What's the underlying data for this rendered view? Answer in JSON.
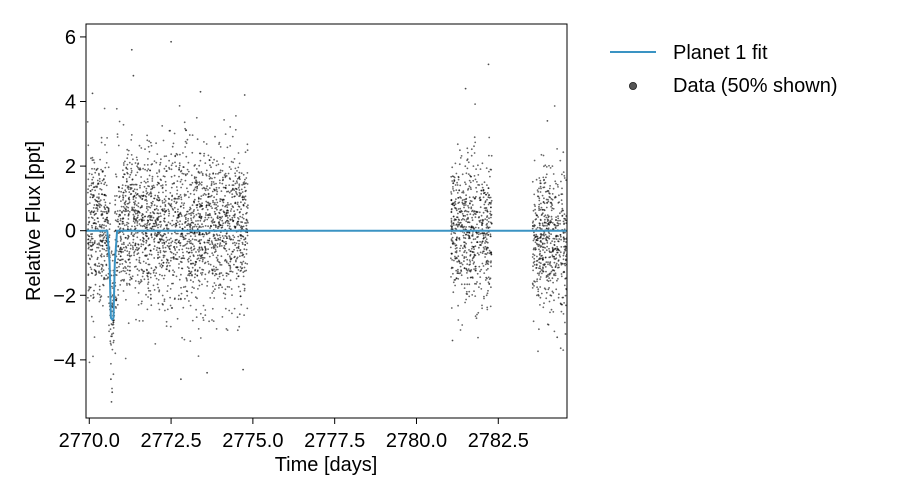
{
  "chart_data": {
    "type": "scatter",
    "xlabel": "Time [days]",
    "ylabel": "Relative Flux [ppt]",
    "xlim": [
      2769.9,
      2784.6
    ],
    "ylim": [
      -5.8,
      6.4
    ],
    "xticks": [
      2770.0,
      2772.5,
      2775.0,
      2777.5,
      2780.0,
      2782.5
    ],
    "xtick_labels": [
      "2770.0",
      "2772.5",
      "2775.0",
      "2777.5",
      "2780.0",
      "2782.5"
    ],
    "yticks": [
      6,
      4,
      2,
      0,
      -2,
      -4
    ],
    "ytick_labels": [
      "6",
      "4",
      "2",
      "0",
      "−2",
      "−4"
    ],
    "grid": false,
    "legend": {
      "placement": "outside-top-right",
      "entries": [
        {
          "label": "Planet 1 fit",
          "kind": "line",
          "color": "#3a93c3"
        },
        {
          "label": "Data (50% shown)",
          "kind": "marker",
          "color": "#555555"
        }
      ]
    },
    "series": [
      {
        "name": "Planet 1 fit",
        "kind": "line",
        "color": "#3a93c3",
        "x": [
          2769.9,
          2770.55,
          2770.62,
          2770.66,
          2770.7,
          2770.74,
          2770.78,
          2770.85,
          2784.6
        ],
        "y": [
          0,
          0,
          -1.0,
          -2.7,
          -2.75,
          -2.7,
          -1.0,
          0,
          0
        ]
      },
      {
        "name": "Data (50% shown)",
        "kind": "scatter",
        "color": "#000000",
        "segments": [
          {
            "x_range": [
              2769.95,
              2774.85
            ],
            "center": 0.1,
            "spread": 1.2
          },
          {
            "x_range": [
              2781.05,
              2782.3
            ],
            "center": 0.0,
            "spread": 1.1
          },
          {
            "x_range": [
              2783.55,
              2784.6
            ],
            "center": -0.3,
            "spread": 1.1
          }
        ],
        "outlier_points": [
          {
            "x": 2771.3,
            "y": 5.6
          },
          {
            "x": 2772.5,
            "y": 5.85
          },
          {
            "x": 2771.35,
            "y": 4.8
          },
          {
            "x": 2770.1,
            "y": 4.25
          },
          {
            "x": 2773.4,
            "y": 4.3
          },
          {
            "x": 2774.75,
            "y": 4.2
          },
          {
            "x": 2782.2,
            "y": 5.15
          },
          {
            "x": 2781.5,
            "y": 4.4
          },
          {
            "x": 2784.0,
            "y": 3.4
          },
          {
            "x": 2772.8,
            "y": -4.6
          },
          {
            "x": 2773.6,
            "y": -4.4
          },
          {
            "x": 2774.7,
            "y": -4.3
          },
          {
            "x": 2770.68,
            "y": -5.3
          },
          {
            "x": 2770.7,
            "y": -5.0
          },
          {
            "x": 2770.66,
            "y": -4.6
          },
          {
            "x": 2781.1,
            "y": -3.4
          },
          {
            "x": 2784.3,
            "y": -3.3
          },
          {
            "x": 2784.55,
            "y": -3.2
          }
        ]
      }
    ]
  }
}
